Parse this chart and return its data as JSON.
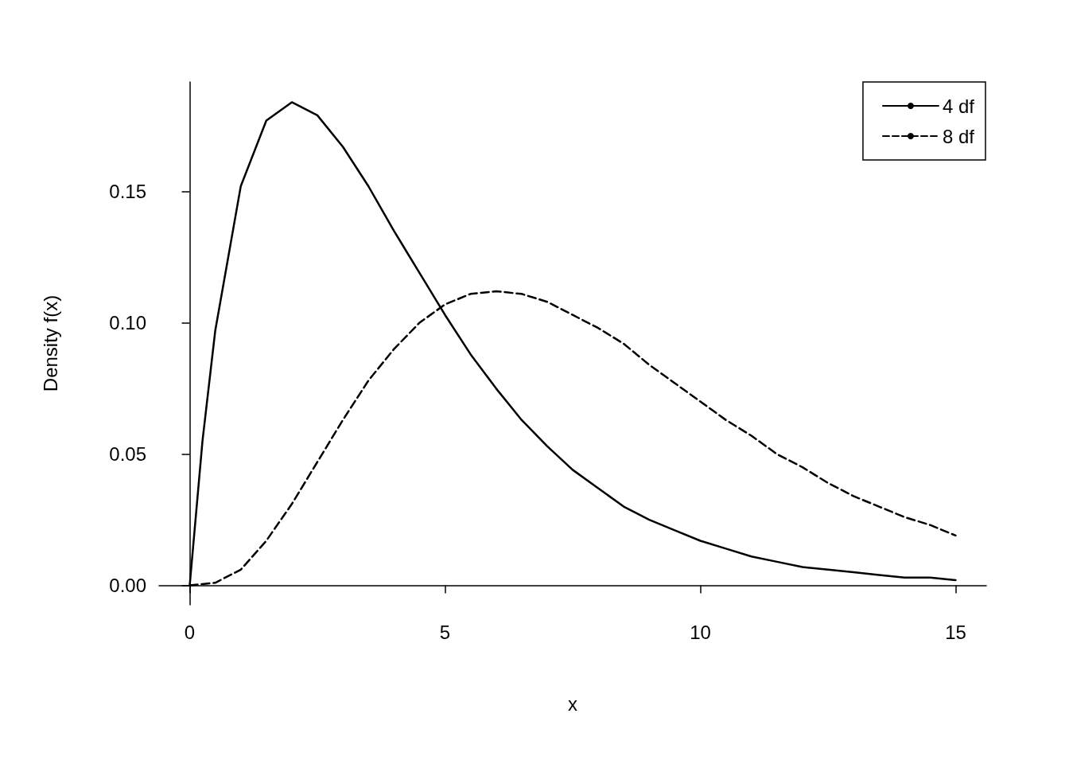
{
  "chart_data": {
    "type": "line",
    "xlabel": "x",
    "ylabel": "Density f(x)",
    "xlim": [
      -0.6,
      15.6
    ],
    "ylim": [
      -0.0074,
      0.1917
    ],
    "xticks": [
      0,
      5,
      10,
      15
    ],
    "yticks": [
      {
        "value": 0,
        "label": "0.00"
      },
      0.05,
      {
        "value": 0.1,
        "label": "0.10"
      },
      0.15
    ],
    "grid": false,
    "legend": "top right",
    "marker": "none",
    "series": [
      {
        "name": "4 df",
        "color": "#000000",
        "line_style": "solid",
        "x": [
          0,
          0.25,
          0.5,
          1,
          1.5,
          2,
          2.5,
          3,
          3.5,
          4,
          4.5,
          5,
          5.5,
          6,
          6.5,
          7,
          7.5,
          8,
          8.5,
          9,
          9.5,
          10,
          10.5,
          11,
          11.5,
          12,
          12.5,
          13,
          13.5,
          14,
          14.5,
          15
        ],
        "values": [
          0,
          0.055,
          0.097,
          0.152,
          0.177,
          0.184,
          0.179,
          0.167,
          0.152,
          0.135,
          0.119,
          0.103,
          0.088,
          0.075,
          0.063,
          0.053,
          0.044,
          0.037,
          0.03,
          0.025,
          0.021,
          0.017,
          0.014,
          0.011,
          0.009,
          0.007,
          0.006,
          0.005,
          0.004,
          0.003,
          0.003,
          0.002
        ]
      },
      {
        "name": "8 df",
        "color": "#000000",
        "line_style": "dashed",
        "x": [
          0,
          0.5,
          1,
          1.5,
          2,
          2.5,
          3,
          3.5,
          4,
          4.5,
          5,
          5.5,
          6,
          6.5,
          7,
          7.5,
          8,
          8.5,
          9,
          9.5,
          10,
          10.5,
          11,
          11.5,
          12,
          12.5,
          13,
          13.5,
          14,
          14.5,
          15
        ],
        "values": [
          0,
          0.001,
          0.006,
          0.017,
          0.031,
          0.047,
          0.063,
          0.078,
          0.09,
          0.1,
          0.107,
          0.111,
          0.112,
          0.111,
          0.108,
          0.103,
          0.098,
          0.092,
          0.084,
          0.077,
          0.07,
          0.063,
          0.057,
          0.05,
          0.045,
          0.039,
          0.034,
          0.03,
          0.026,
          0.023,
          0.019
        ]
      }
    ]
  }
}
